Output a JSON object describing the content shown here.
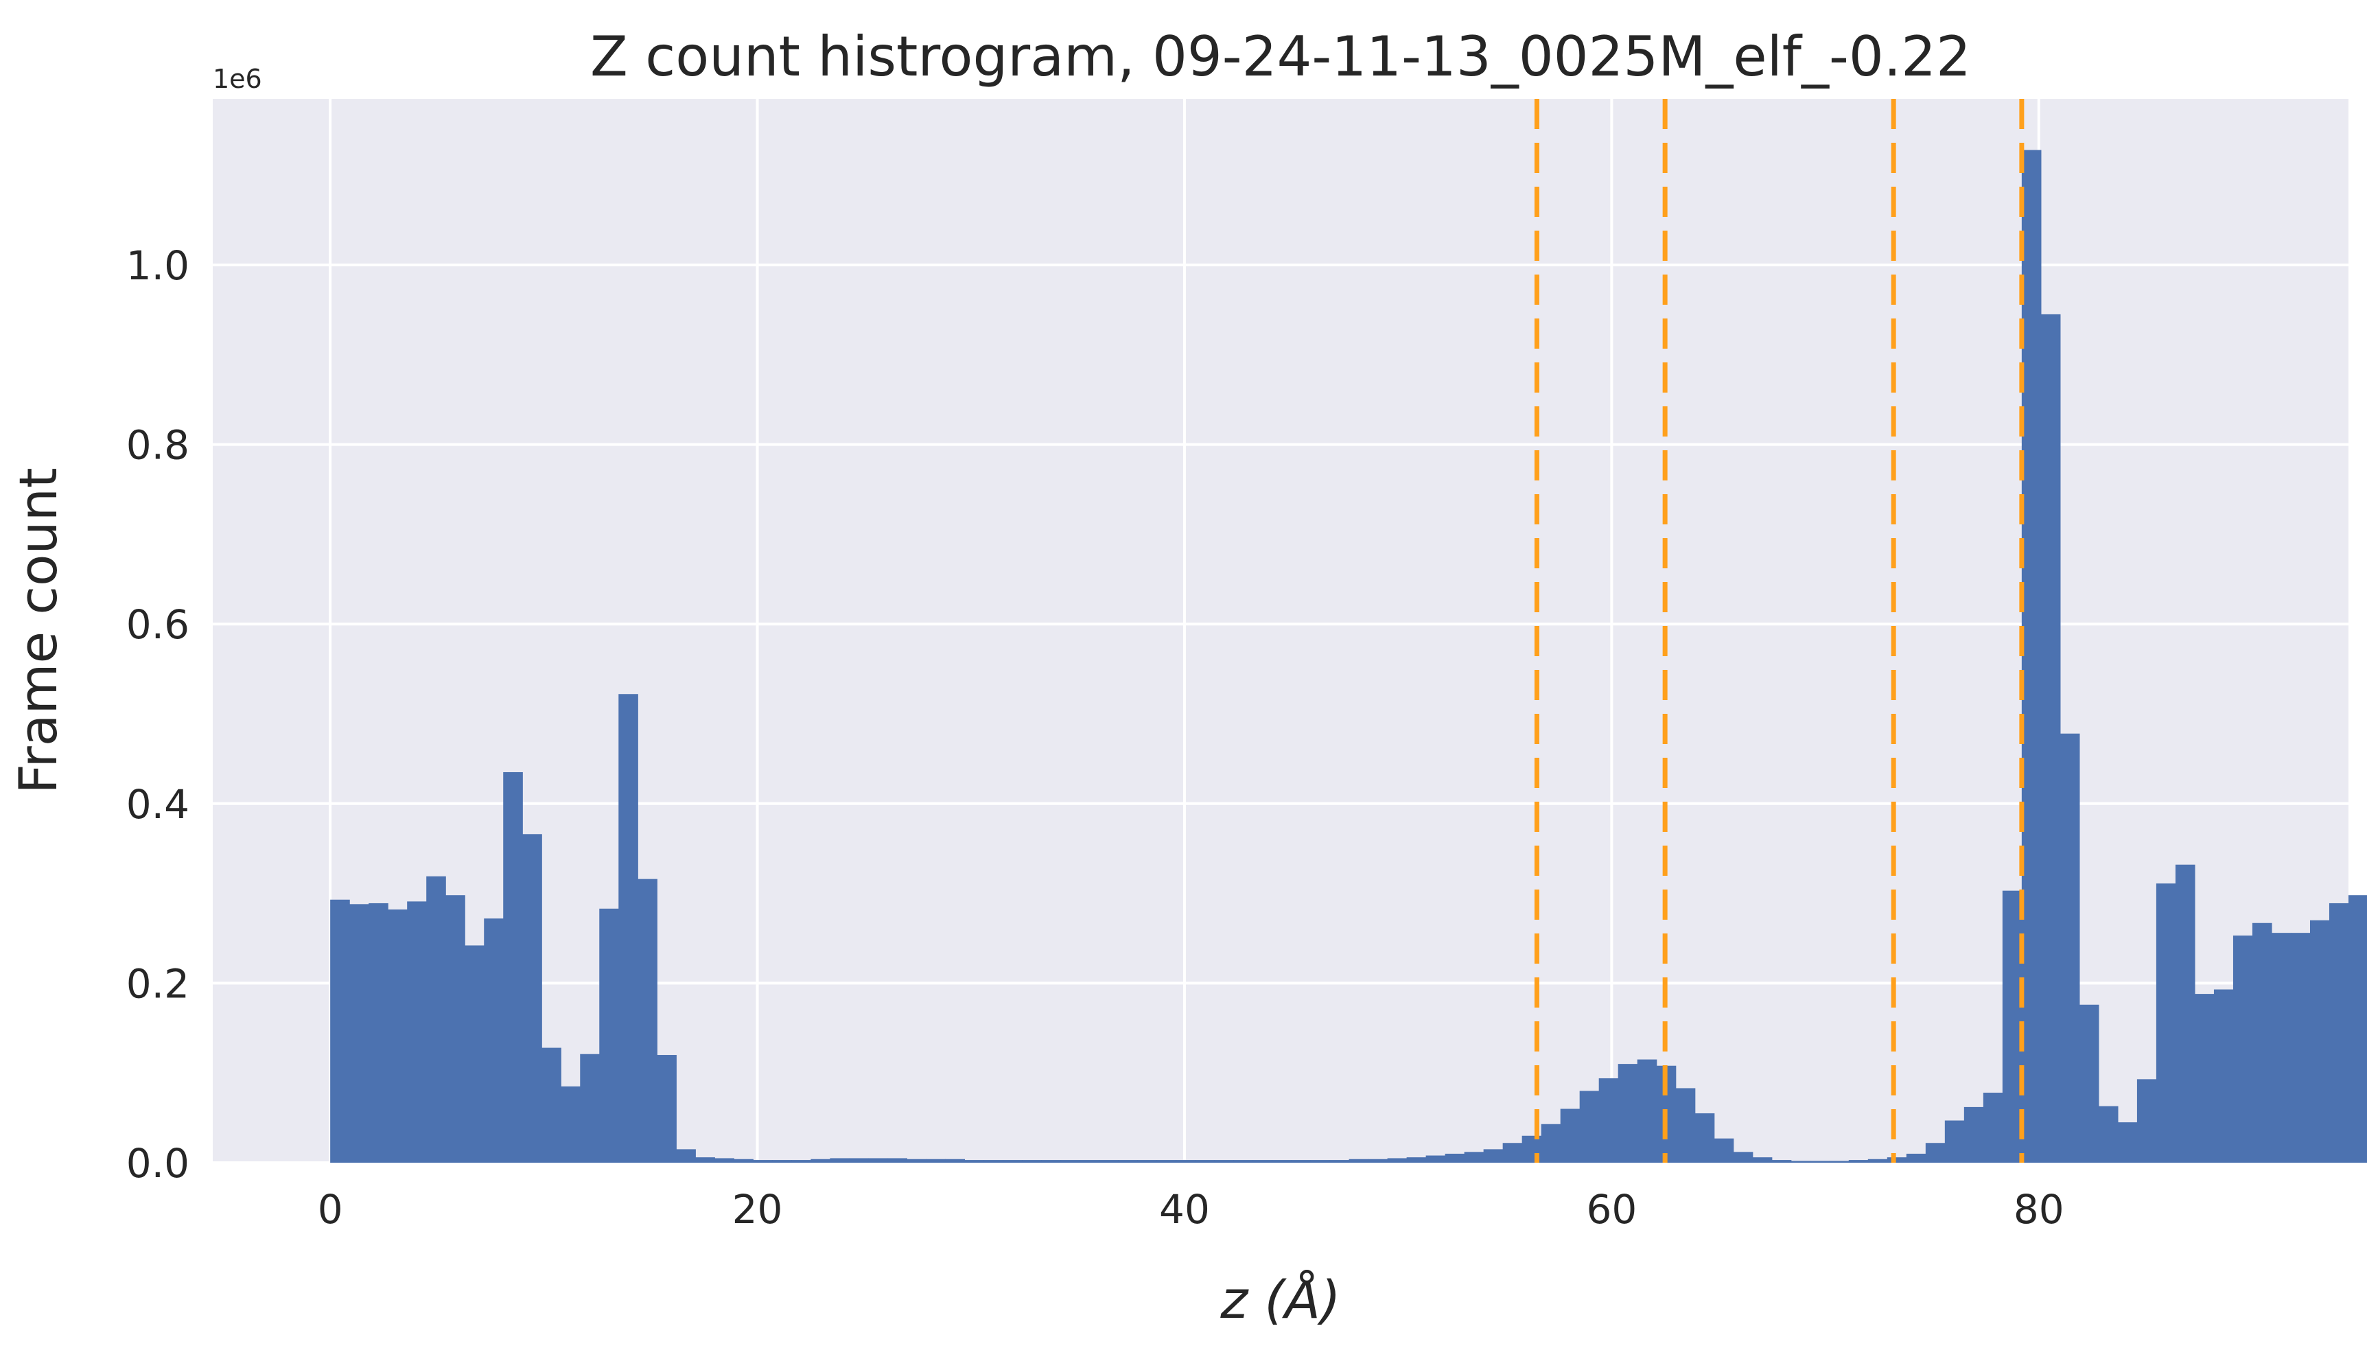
{
  "chart_data": {
    "type": "bar",
    "title": "Z count histrogram, 09-24-11-13_0025M_elf_-0.22",
    "xlabel": "z (Å)",
    "ylabel": "Frame count",
    "y_offset_label": "1e6",
    "xlim": [
      -5.5,
      94.5
    ],
    "ylim": [
      0,
      1.185
    ],
    "bin_width": 0.9,
    "x_start": 0,
    "xticks": [
      0,
      20,
      40,
      60,
      80
    ],
    "yticks": [
      0.0,
      0.2,
      0.4,
      0.6,
      0.8,
      1.0
    ],
    "xtick_labels": [
      "0",
      "20",
      "40",
      "60",
      "80"
    ],
    "ytick_labels": [
      "0.0",
      "0.2",
      "0.4",
      "0.6",
      "0.8",
      "1.0"
    ],
    "grid": true,
    "bar_color": "#4c72b0",
    "vline_color": "#ffa01c",
    "vlines": [
      56.5,
      62.5,
      73.2,
      79.2
    ],
    "values": [
      0.293,
      0.288,
      0.289,
      0.282,
      0.291,
      0.319,
      0.298,
      0.242,
      0.272,
      0.435,
      0.366,
      0.128,
      0.085,
      0.121,
      0.283,
      0.522,
      0.316,
      0.12,
      0.015,
      0.006,
      0.005,
      0.004,
      0.003,
      0.003,
      0.003,
      0.004,
      0.005,
      0.005,
      0.005,
      0.005,
      0.004,
      0.004,
      0.004,
      0.003,
      0.003,
      0.003,
      0.003,
      0.003,
      0.003,
      0.003,
      0.003,
      0.003,
      0.003,
      0.003,
      0.003,
      0.003,
      0.003,
      0.003,
      0.003,
      0.003,
      0.003,
      0.003,
      0.003,
      0.004,
      0.004,
      0.005,
      0.006,
      0.008,
      0.01,
      0.012,
      0.015,
      0.022,
      0.03,
      0.043,
      0.06,
      0.08,
      0.094,
      0.11,
      0.115,
      0.108,
      0.083,
      0.055,
      0.027,
      0.012,
      0.006,
      0.003,
      0.002,
      0.002,
      0.002,
      0.003,
      0.004,
      0.006,
      0.01,
      0.022,
      0.047,
      0.062,
      0.078,
      0.303,
      1.128,
      0.945,
      0.478,
      0.176,
      0.063,
      0.045,
      0.093,
      0.311,
      0.332,
      0.188,
      0.193,
      0.253,
      0.267,
      0.256,
      0.256,
      0.27,
      0.289,
      0.298
    ]
  }
}
